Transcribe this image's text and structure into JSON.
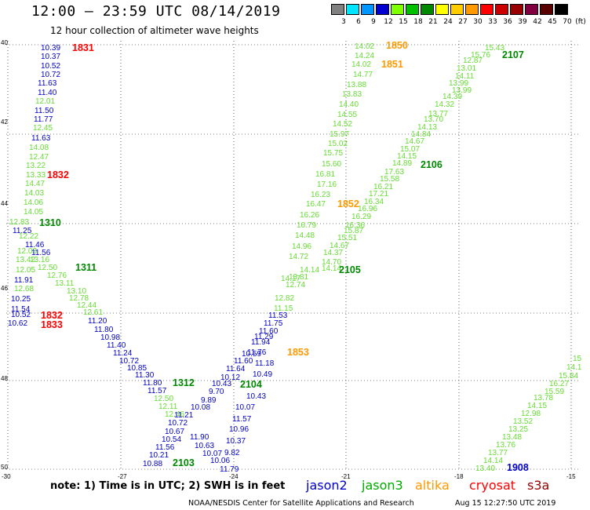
{
  "header": {
    "title": "12:00 – 23:59 UTC 08/14/2019",
    "subtitle": "12 hour collection of altimeter wave heights"
  },
  "colorbar": {
    "unit_label": "(ft)",
    "labels": [
      "3",
      "6",
      "9",
      "12",
      "15",
      "18",
      "21",
      "24",
      "27",
      "30",
      "33",
      "36",
      "39",
      "42",
      "45",
      "70"
    ],
    "colors": [
      "#808080",
      "#00e5ff",
      "#0096ff",
      "#0000d0",
      "#7fff00",
      "#00c000",
      "#008800",
      "#ffff00",
      "#ffcc00",
      "#ff9900",
      "#ff0000",
      "#cc0000",
      "#990000",
      "#800040",
      "#5a0000",
      "#000000"
    ]
  },
  "axes": {
    "lat_labels": [
      "40",
      "42",
      "44",
      "46",
      "48",
      "50"
    ],
    "lon_labels": [
      "-30",
      "-27",
      "-24",
      "-21",
      "-18",
      "-15"
    ]
  },
  "colors": {
    "jason2": "#0000cc",
    "jason3": "#00aa00",
    "altika": "#ff9900",
    "cryosat": "#ff0000",
    "s3a": "#990000",
    "light_green": "#66dd33",
    "dark_green": "#008800"
  },
  "passes": [
    {
      "label": "1831",
      "color": "red"
    },
    {
      "label": "1832",
      "color": "red"
    },
    {
      "label": "1310",
      "color": "dgreen"
    },
    {
      "label": "1311",
      "color": "dgreen"
    },
    {
      "label": "1832",
      "color": "red"
    },
    {
      "label": "1833",
      "color": "red"
    },
    {
      "label": "1312",
      "color": "dgreen"
    },
    {
      "label": "2103",
      "color": "dgreen"
    },
    {
      "label": "2104",
      "color": "dgreen"
    },
    {
      "label": "1853",
      "color": "orange"
    },
    {
      "label": "2105",
      "color": "dgreen"
    },
    {
      "label": "1852",
      "color": "orange"
    },
    {
      "label": "2106",
      "color": "dgreen"
    },
    {
      "label": "1850",
      "color": "orange"
    },
    {
      "label": "1851",
      "color": "orange"
    },
    {
      "label": "2107",
      "color": "dgreen"
    },
    {
      "label": "1908",
      "color": "blue"
    }
  ],
  "tracks": [
    {
      "name": "left-track",
      "values": [
        {
          "v": "10.39",
          "c": "blue"
        },
        {
          "v": "10.37",
          "c": "blue"
        },
        {
          "v": "10.52",
          "c": "blue"
        },
        {
          "v": "10.72",
          "c": "blue"
        },
        {
          "v": "11.63",
          "c": "blue"
        },
        {
          "v": "11.40",
          "c": "blue"
        },
        {
          "v": "12.01",
          "c": "lg"
        },
        {
          "v": "11.50",
          "c": "blue"
        },
        {
          "v": "11.77",
          "c": "blue"
        },
        {
          "v": "12.45",
          "c": "lg"
        },
        {
          "v": "11.63",
          "c": "blue"
        },
        {
          "v": "14.08",
          "c": "lg"
        },
        {
          "v": "12.47",
          "c": "lg"
        },
        {
          "v": "13.22",
          "c": "lg"
        },
        {
          "v": "13.33",
          "c": "lg"
        },
        {
          "v": "14.47",
          "c": "lg"
        },
        {
          "v": "14.03",
          "c": "lg"
        },
        {
          "v": "14.06",
          "c": "lg"
        },
        {
          "v": "14.05",
          "c": "lg"
        },
        {
          "v": "12.83",
          "c": "lg"
        },
        {
          "v": "11.25",
          "c": "blue"
        },
        {
          "v": "12.22",
          "c": "lg"
        },
        {
          "v": "11.46",
          "c": "blue"
        },
        {
          "v": "12.03",
          "c": "lg"
        },
        {
          "v": "11.56",
          "c": "blue"
        },
        {
          "v": "13.16",
          "c": "lg"
        },
        {
          "v": "13.42",
          "c": "lg"
        },
        {
          "v": "12.50",
          "c": "lg"
        },
        {
          "v": "12.05",
          "c": "lg"
        },
        {
          "v": "12.76",
          "c": "lg"
        },
        {
          "v": "11.91",
          "c": "blue"
        },
        {
          "v": "13.11",
          "c": "lg"
        },
        {
          "v": "12.68",
          "c": "lg"
        },
        {
          "v": "13.10",
          "c": "lg"
        },
        {
          "v": "10.25",
          "c": "blue"
        },
        {
          "v": "12.78",
          "c": "lg"
        },
        {
          "v": "11.54",
          "c": "blue"
        },
        {
          "v": "12.44",
          "c": "lg"
        },
        {
          "v": "10.52",
          "c": "blue"
        },
        {
          "v": "12.61",
          "c": "lg"
        },
        {
          "v": "10.62",
          "c": "blue"
        },
        {
          "v": "11.20",
          "c": "blue"
        },
        {
          "v": "11.80",
          "c": "blue"
        },
        {
          "v": "10.98",
          "c": "blue"
        },
        {
          "v": "11.40",
          "c": "blue"
        },
        {
          "v": "11.24",
          "c": "blue"
        },
        {
          "v": "10.72",
          "c": "blue"
        },
        {
          "v": "10.85",
          "c": "blue"
        },
        {
          "v": "11.30",
          "c": "blue"
        },
        {
          "v": "11.80",
          "c": "blue"
        },
        {
          "v": "11.57",
          "c": "blue"
        },
        {
          "v": "12.50",
          "c": "lg"
        },
        {
          "v": "12.11",
          "c": "lg"
        },
        {
          "v": "12.46",
          "c": "lg"
        },
        {
          "v": "10.72",
          "c": "blue"
        },
        {
          "v": "10.67",
          "c": "blue"
        },
        {
          "v": "10.54",
          "c": "blue"
        },
        {
          "v": "11.56",
          "c": "blue"
        },
        {
          "v": "10.21",
          "c": "blue"
        },
        {
          "v": "10.88",
          "c": "blue"
        }
      ]
    },
    {
      "name": "mid-track",
      "values": [
        {
          "v": "11.21",
          "c": "blue"
        },
        {
          "v": "10.08",
          "c": "blue"
        },
        {
          "v": "9.89",
          "c": "blue"
        },
        {
          "v": "9.70",
          "c": "blue"
        },
        {
          "v": "10.43",
          "c": "blue"
        },
        {
          "v": "10.12",
          "c": "blue"
        },
        {
          "v": "11.90",
          "c": "blue"
        },
        {
          "v": "10.63",
          "c": "blue"
        },
        {
          "v": "10.07",
          "c": "blue"
        },
        {
          "v": "10.06",
          "c": "blue"
        },
        {
          "v": "11.79",
          "c": "blue"
        },
        {
          "v": "9.82",
          "c": "blue"
        },
        {
          "v": "10.37",
          "c": "blue"
        },
        {
          "v": "10.96",
          "c": "blue"
        },
        {
          "v": "11.57",
          "c": "blue"
        },
        {
          "v": "10.07",
          "c": "blue"
        },
        {
          "v": "10.43",
          "c": "blue"
        },
        {
          "v": "10.49",
          "c": "blue"
        },
        {
          "v": "11.18",
          "c": "blue"
        },
        {
          "v": "11.64",
          "c": "blue"
        },
        {
          "v": "11.60",
          "c": "blue"
        },
        {
          "v": "10.59",
          "c": "blue"
        },
        {
          "v": "11.76",
          "c": "blue"
        },
        {
          "v": "11.94",
          "c": "blue"
        },
        {
          "v": "11.29",
          "c": "blue"
        },
        {
          "v": "11.60",
          "c": "blue"
        },
        {
          "v": "11.75",
          "c": "blue"
        },
        {
          "v": "11.53",
          "c": "blue"
        }
      ]
    },
    {
      "name": "j3-mid",
      "values": [
        {
          "v": "11.15",
          "c": "lg"
        },
        {
          "v": "12.82",
          "c": "lg"
        },
        {
          "v": "12.74",
          "c": "lg"
        },
        {
          "v": "14.17",
          "c": "lg"
        },
        {
          "v": "13.81",
          "c": "lg"
        },
        {
          "v": "14.14",
          "c": "lg"
        },
        {
          "v": "14.72",
          "c": "lg"
        },
        {
          "v": "14.96",
          "c": "lg"
        },
        {
          "v": "14.48",
          "c": "lg"
        },
        {
          "v": "16.79",
          "c": "lg"
        },
        {
          "v": "16.26",
          "c": "lg"
        },
        {
          "v": "16.47",
          "c": "lg"
        },
        {
          "v": "16.23",
          "c": "lg"
        },
        {
          "v": "17.16",
          "c": "lg"
        },
        {
          "v": "16.81",
          "c": "lg"
        },
        {
          "v": "15.60",
          "c": "lg"
        },
        {
          "v": "15.75",
          "c": "lg"
        },
        {
          "v": "15.02",
          "c": "lg"
        },
        {
          "v": "15.97",
          "c": "lg"
        },
        {
          "v": "14.52",
          "c": "lg"
        },
        {
          "v": "14.55",
          "c": "lg"
        },
        {
          "v": "14.40",
          "c": "lg"
        },
        {
          "v": "13.83",
          "c": "lg"
        },
        {
          "v": "13.88",
          "c": "lg"
        },
        {
          "v": "14.77",
          "c": "lg"
        },
        {
          "v": "14.02",
          "c": "lg"
        },
        {
          "v": "14.24",
          "c": "lg"
        },
        {
          "v": "14.02",
          "c": "lg"
        }
      ]
    },
    {
      "name": "j3-right",
      "values": [
        {
          "v": "14.14",
          "c": "lg"
        },
        {
          "v": "14.70",
          "c": "lg"
        },
        {
          "v": "14.37",
          "c": "lg"
        },
        {
          "v": "14.67",
          "c": "lg"
        },
        {
          "v": "15.51",
          "c": "lg"
        },
        {
          "v": "15.87",
          "c": "lg"
        },
        {
          "v": "16.36",
          "c": "lg"
        },
        {
          "v": "16.29",
          "c": "lg"
        },
        {
          "v": "16.96",
          "c": "lg"
        },
        {
          "v": "16.34",
          "c": "lg"
        },
        {
          "v": "17.21",
          "c": "lg"
        },
        {
          "v": "16.21",
          "c": "lg"
        },
        {
          "v": "15.58",
          "c": "lg"
        },
        {
          "v": "17.63",
          "c": "lg"
        },
        {
          "v": "14.89",
          "c": "lg"
        },
        {
          "v": "14.15",
          "c": "lg"
        },
        {
          "v": "15.07",
          "c": "lg"
        },
        {
          "v": "14.67",
          "c": "lg"
        },
        {
          "v": "14.84",
          "c": "lg"
        },
        {
          "v": "14.13",
          "c": "lg"
        },
        {
          "v": "13.70",
          "c": "lg"
        },
        {
          "v": "13.77",
          "c": "lg"
        },
        {
          "v": "14.32",
          "c": "lg"
        },
        {
          "v": "14.39",
          "c": "lg"
        },
        {
          "v": "13.99",
          "c": "lg"
        },
        {
          "v": "13.99",
          "c": "lg"
        },
        {
          "v": "14.11",
          "c": "lg"
        },
        {
          "v": "13.01",
          "c": "lg"
        },
        {
          "v": "12.87",
          "c": "lg"
        },
        {
          "v": "15.76",
          "c": "lg"
        },
        {
          "v": "15.43",
          "c": "lg"
        }
      ]
    },
    {
      "name": "far-right",
      "values": [
        {
          "v": "13.40",
          "c": "lg"
        },
        {
          "v": "14.14",
          "c": "lg"
        },
        {
          "v": "13.77",
          "c": "lg"
        },
        {
          "v": "13.76",
          "c": "lg"
        },
        {
          "v": "13.48",
          "c": "lg"
        },
        {
          "v": "13.25",
          "c": "lg"
        },
        {
          "v": "13.52",
          "c": "lg"
        },
        {
          "v": "12.98",
          "c": "lg"
        },
        {
          "v": "14.15",
          "c": "lg"
        },
        {
          "v": "13.78",
          "c": "lg"
        },
        {
          "v": "15.59",
          "c": "lg"
        },
        {
          "v": "16.27",
          "c": "lg"
        },
        {
          "v": "15.84",
          "c": "lg"
        },
        {
          "v": "14.1",
          "c": "lg"
        },
        {
          "v": "15",
          "c": "lg"
        }
      ]
    }
  ],
  "footer": {
    "note": "note: 1) Time is in UTC; 2) SWH is in feet",
    "satellites": [
      "jason2",
      "jason3",
      "altika",
      "cryosat",
      "s3a"
    ],
    "credit": "NOAA/NESDIS Center for Satellite Applications and Research",
    "timestamp": "Aug 15 12:27:50 UTC 2019"
  }
}
